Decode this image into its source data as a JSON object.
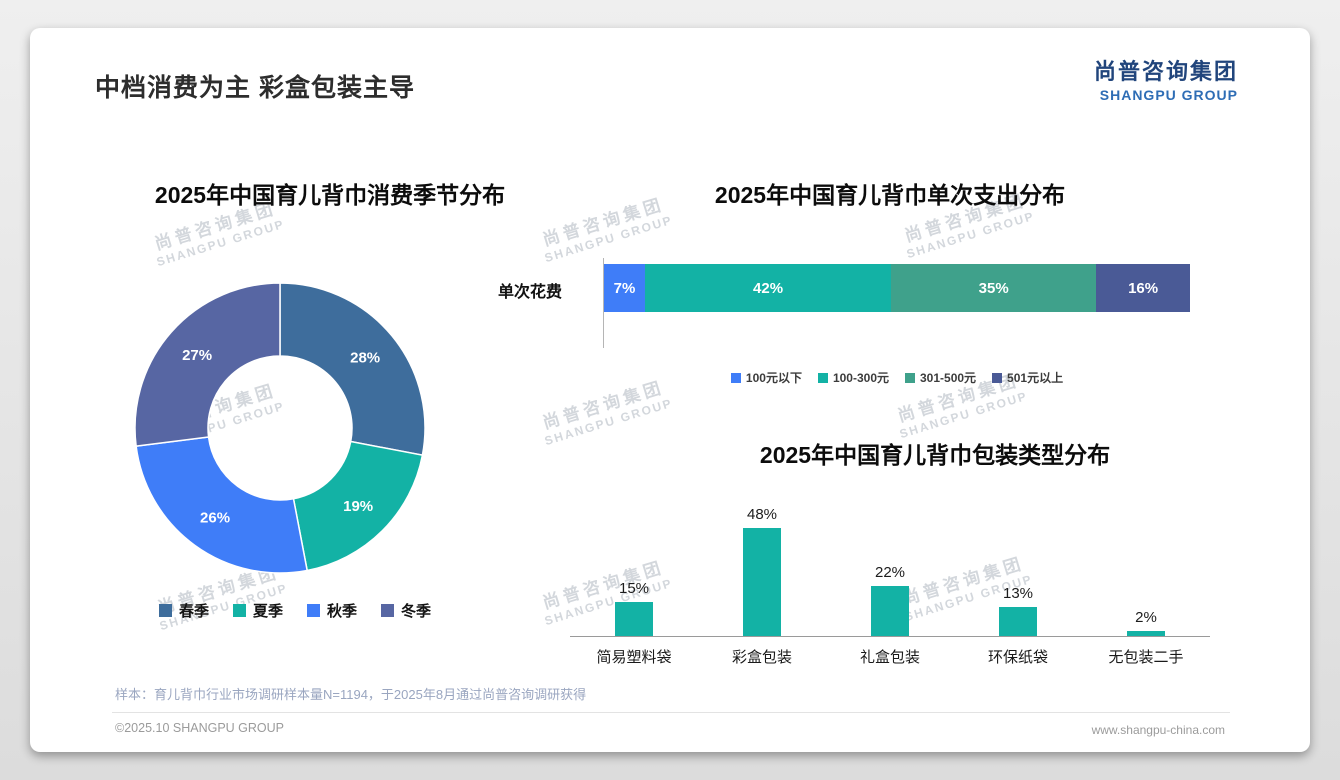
{
  "page": {
    "title": "中档消费为主 彩盒包装主导",
    "logo": {
      "cn": "尚普咨询集团",
      "en": "SHANGPU GROUP"
    },
    "watermark": {
      "cn": "尚普咨询集团",
      "en": "SHANGPU GROUP"
    },
    "footnote": "样本：育儿背巾行业市场调研样本量N=1194，于2025年8月通过尚普咨询调研获得",
    "footer_left": "©2025.10 SHANGPU GROUP",
    "footer_right": "www.shangpu-china.com"
  },
  "colors": {
    "teal": "#13b2a5",
    "bright_blue": "#3f7df8",
    "steel_blue": "#3e6d9c",
    "slate_blue": "#5766a3",
    "sea_green": "#3fa18b",
    "dark_slate": "#4a5a96",
    "logo_blue": "#2e6db5"
  },
  "chart_data": [
    {
      "type": "pie",
      "subtype": "donut",
      "title": "2025年中国育儿背巾消费季节分布",
      "categories": [
        "春季",
        "夏季",
        "秋季",
        "冬季"
      ],
      "values": [
        28,
        19,
        26,
        27
      ],
      "labels": [
        "28%",
        "19%",
        "26%",
        "27%"
      ],
      "colors": [
        "#3e6d9c",
        "#13b2a5",
        "#3f7df8",
        "#5766a3"
      ],
      "start_angle": "top",
      "direction": "clockwise",
      "legend_position": "bottom"
    },
    {
      "type": "bar",
      "subtype": "stacked-horizontal",
      "title": "2025年中国育儿背巾单次支出分布",
      "row_label": "单次花费",
      "categories": [
        "100元以下",
        "100-300元",
        "301-500元",
        "501元以上"
      ],
      "values": [
        7,
        42,
        35,
        16
      ],
      "labels": [
        "7%",
        "42%",
        "35%",
        "16%"
      ],
      "colors": [
        "#3f7df8",
        "#13b2a5",
        "#3fa18b",
        "#4a5a96"
      ],
      "legend_position": "bottom"
    },
    {
      "type": "bar",
      "subtype": "vertical",
      "title": "2025年中国育儿背巾包装类型分布",
      "categories": [
        "简易塑料袋",
        "彩盒包装",
        "礼盒包装",
        "环保纸袋",
        "无包装二手"
      ],
      "values": [
        15,
        48,
        22,
        13,
        2
      ],
      "labels": [
        "15%",
        "48%",
        "22%",
        "13%",
        "2%"
      ],
      "color": "#13b2a5",
      "ylim": [
        0,
        50
      ],
      "grid": false
    }
  ]
}
